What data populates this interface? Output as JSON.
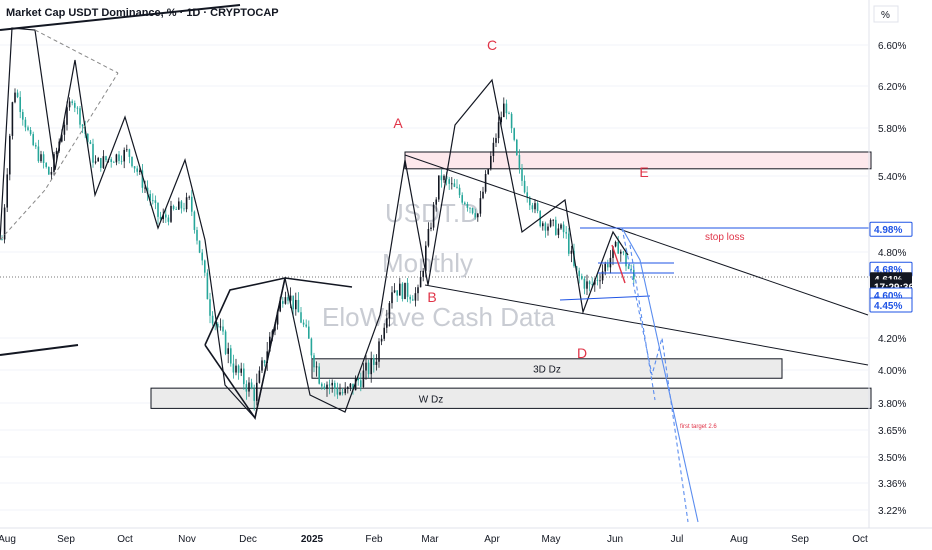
{
  "chart_data": {
    "type": "candlestick",
    "title": "Market Cap USDT Dominance, % · 1D · CRYPTOCAP",
    "unit_label": "%",
    "watermark": [
      "USDT.D",
      "Monthly",
      "EloWave Cash Data"
    ],
    "y_ticks": [
      6.6,
      6.2,
      5.8,
      5.4,
      4.8,
      4.2,
      4.0,
      3.8,
      3.65,
      3.5,
      3.36,
      3.22
    ],
    "y_tick_labels": [
      "6.60%",
      "6.20%",
      "5.80%",
      "5.40%",
      "4.80%",
      "4.20%",
      "4.00%",
      "3.80%",
      "3.65%",
      "3.50%",
      "3.36%",
      "3.22%"
    ],
    "x_tick_labels": [
      "Aug",
      "Sep",
      "Oct",
      "Nov",
      "Dec",
      "2025",
      "Feb",
      "Mar",
      "Apr",
      "May",
      "Jun",
      "Jul",
      "Aug",
      "Sep",
      "Oct"
    ],
    "price_tags": [
      {
        "label": "4.98%",
        "value": 4.98,
        "style": "outline"
      },
      {
        "label": "4.68%",
        "value": 4.68,
        "style": "outline"
      },
      {
        "label": "4.61%",
        "value": 4.61,
        "style": "filled"
      },
      {
        "label": "17:29:36",
        "value": 4.56,
        "style": "filled"
      },
      {
        "label": "4.60%",
        "value": 4.5,
        "style": "outline"
      },
      {
        "label": "4.45%",
        "value": 4.43,
        "style": "outline"
      }
    ],
    "wave_labels": [
      "A",
      "B",
      "C",
      "D",
      "E"
    ],
    "zones": [
      {
        "label": "3D Dz",
        "top": 4.07,
        "bottom": 3.95
      },
      {
        "label": "W Dz",
        "top": 3.89,
        "bottom": 3.77
      },
      {
        "label": "",
        "top": 5.6,
        "bottom": 5.46
      }
    ],
    "annotations": [
      "stop loss",
      "first target 2.6"
    ],
    "colors": {
      "up": "#26a69a",
      "down": "#131722",
      "accent": "#1e53e5",
      "wave": "#e03448",
      "zone_pink": "#fde8ec"
    }
  }
}
